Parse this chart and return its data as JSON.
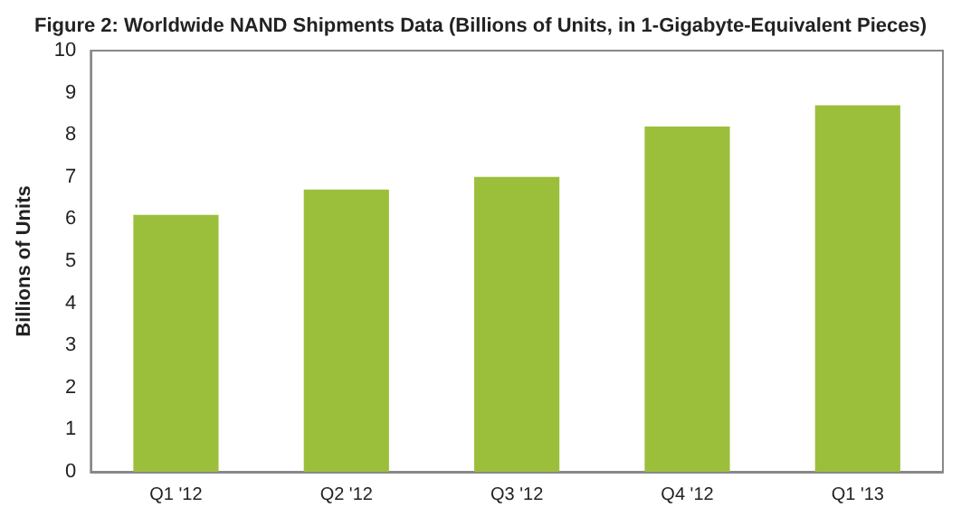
{
  "chart_data": {
    "type": "bar",
    "title": "Figure 2: Worldwide NAND Shipments Data (Billions of Units, in 1-Gigabyte-Equivalent Pieces)",
    "ylabel": "Billions of Units",
    "categories": [
      "Q1 '12",
      "Q2 '12",
      "Q3 '12",
      "Q4 '12",
      "Q1 '13"
    ],
    "values": [
      6.1,
      6.7,
      7.0,
      8.2,
      8.7
    ],
    "color": "#9bbf3b",
    "ylim": [
      0,
      10
    ],
    "yticks": [
      0,
      1,
      2,
      3,
      4,
      5,
      6,
      7,
      8,
      9,
      10
    ],
    "grid": false
  }
}
